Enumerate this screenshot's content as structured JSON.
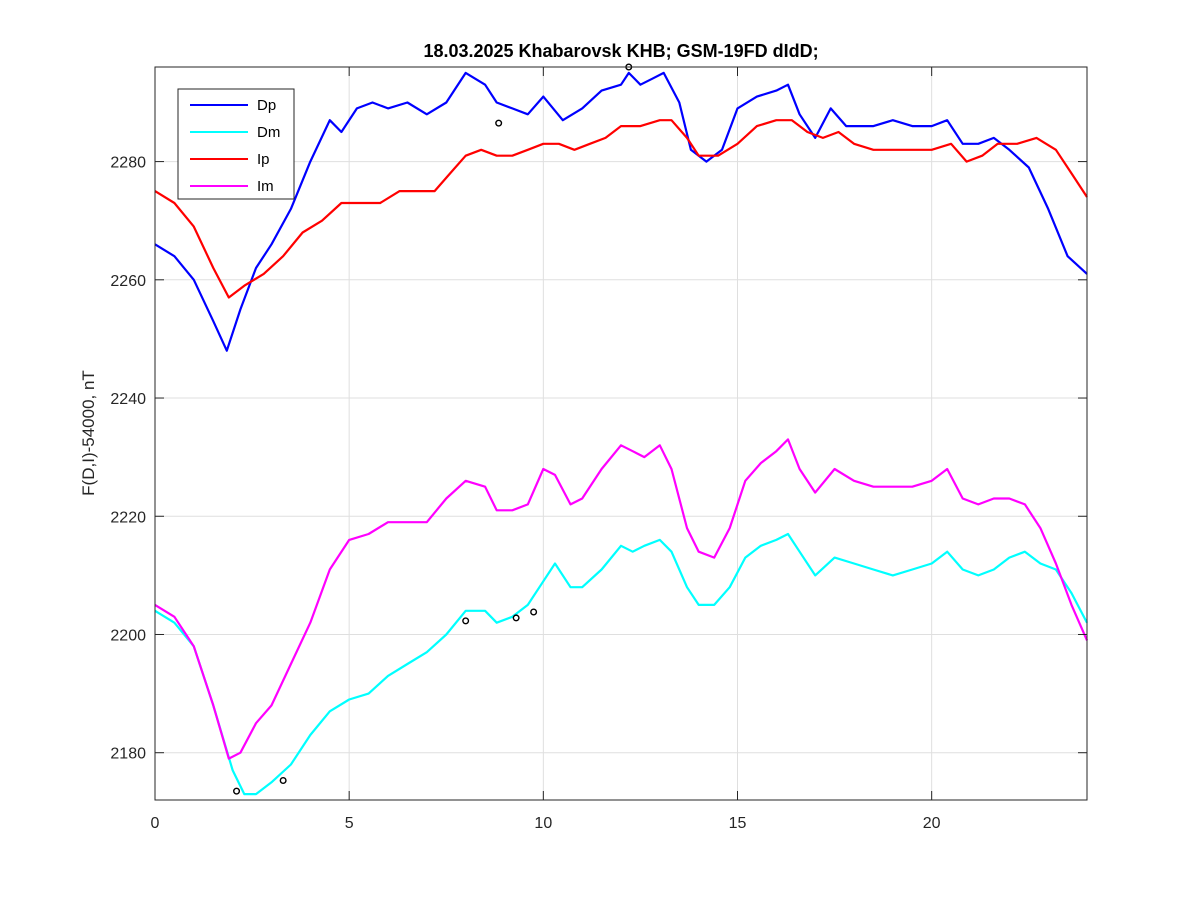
{
  "chart_data": {
    "type": "line",
    "title": "18.03.2025  Khabarovsk KHB; GSM-19FD dIdD;",
    "xlabel": "",
    "ylabel": "F(D,I)-54000, nT",
    "xlim": [
      0,
      24
    ],
    "ylim": [
      2172,
      2296
    ],
    "xticks": [
      0,
      5,
      10,
      15,
      20
    ],
    "yticks": [
      2180,
      2200,
      2220,
      2240,
      2260,
      2280
    ],
    "grid": true,
    "legend_position": "top-left",
    "series": [
      {
        "name": "Dp",
        "color": "#0000ff",
        "x": [
          0,
          0.5,
          1.0,
          1.5,
          1.85,
          2.2,
          2.6,
          3.0,
          3.5,
          4.0,
          4.5,
          4.8,
          5.2,
          5.6,
          6.0,
          6.5,
          7.0,
          7.5,
          8.0,
          8.5,
          8.8,
          9.2,
          9.6,
          10.0,
          10.5,
          11.0,
          11.5,
          12.0,
          12.2,
          12.5,
          12.8,
          13.1,
          13.5,
          13.8,
          14.2,
          14.6,
          15.0,
          15.5,
          16.0,
          16.3,
          16.6,
          17.0,
          17.4,
          17.8,
          18.5,
          19.0,
          19.5,
          20.0,
          20.4,
          20.8,
          21.2,
          21.6,
          22.0,
          22.5,
          23.0,
          23.5,
          24.0
        ],
        "y": [
          2266,
          2264,
          2260,
          2253,
          2248,
          2255,
          2262,
          2266,
          2272,
          2280,
          2287,
          2285,
          2289,
          2290,
          2289,
          2290,
          2288,
          2290,
          2295,
          2293,
          2290,
          2289,
          2288,
          2291,
          2287,
          2289,
          2292,
          2293,
          2295,
          2293,
          2294,
          2295,
          2290,
          2282,
          2280,
          2282,
          2289,
          2291,
          2292,
          2293,
          2288,
          2284,
          2289,
          2286,
          2286,
          2287,
          2286,
          2286,
          2287,
          2283,
          2283,
          2284,
          2282,
          2279,
          2272,
          2264,
          2261
        ]
      },
      {
        "name": "Dm",
        "color": "#00ffff",
        "x": [
          0,
          0.5,
          1.0,
          1.5,
          2.0,
          2.3,
          2.6,
          3.0,
          3.5,
          4.0,
          4.5,
          5.0,
          5.5,
          6.0,
          6.5,
          7.0,
          7.5,
          8.0,
          8.5,
          8.8,
          9.2,
          9.6,
          10.0,
          10.3,
          10.7,
          11.0,
          11.5,
          12.0,
          12.3,
          12.6,
          13.0,
          13.3,
          13.7,
          14.0,
          14.4,
          14.8,
          15.2,
          15.6,
          16.0,
          16.3,
          16.6,
          17.0,
          17.5,
          18.0,
          18.5,
          19.0,
          19.5,
          20.0,
          20.4,
          20.8,
          21.2,
          21.6,
          22.0,
          22.4,
          22.8,
          23.2,
          23.6,
          24.0
        ],
        "y": [
          2204,
          2202,
          2198,
          2188,
          2177,
          2173,
          2173,
          2175,
          2178,
          2183,
          2187,
          2189,
          2190,
          2193,
          2195,
          2197,
          2200,
          2204,
          2204,
          2202,
          2203,
          2205,
          2209,
          2212,
          2208,
          2208,
          2211,
          2215,
          2214,
          2215,
          2216,
          2214,
          2208,
          2205,
          2205,
          2208,
          2213,
          2215,
          2216,
          2217,
          2214,
          2210,
          2213,
          2212,
          2211,
          2210,
          2211,
          2212,
          2214,
          2211,
          2210,
          2211,
          2213,
          2214,
          2212,
          2211,
          2207,
          2202
        ]
      },
      {
        "name": "Ip",
        "color": "#ff0000",
        "x": [
          0,
          0.5,
          1.0,
          1.5,
          1.9,
          2.3,
          2.8,
          3.3,
          3.8,
          4.3,
          4.8,
          5.3,
          5.8,
          6.3,
          6.8,
          7.2,
          7.6,
          8.0,
          8.4,
          8.8,
          9.2,
          9.6,
          10.0,
          10.4,
          10.8,
          11.2,
          11.6,
          12.0,
          12.5,
          13.0,
          13.3,
          13.7,
          14.0,
          14.5,
          15.0,
          15.5,
          16.0,
          16.4,
          16.8,
          17.2,
          17.6,
          18.0,
          18.5,
          19.0,
          19.5,
          20.0,
          20.5,
          20.9,
          21.3,
          21.7,
          22.2,
          22.7,
          23.2,
          23.6,
          24.0
        ],
        "y": [
          2275,
          2273,
          2269,
          2262,
          2257,
          2259,
          2261,
          2264,
          2268,
          2270,
          2273,
          2273,
          2273,
          2275,
          2275,
          2275,
          2278,
          2281,
          2282,
          2281,
          2281,
          2282,
          2283,
          2283,
          2282,
          2283,
          2284,
          2286,
          2286,
          2287,
          2287,
          2284,
          2281,
          2281,
          2283,
          2286,
          2287,
          2287,
          2285,
          2284,
          2285,
          2283,
          2282,
          2282,
          2282,
          2282,
          2283,
          2280,
          2281,
          2283,
          2283,
          2284,
          2282,
          2278,
          2274
        ]
      },
      {
        "name": "Im",
        "color": "#ff00ff",
        "x": [
          0,
          0.5,
          1.0,
          1.5,
          1.9,
          2.2,
          2.6,
          3.0,
          3.5,
          4.0,
          4.5,
          5.0,
          5.5,
          6.0,
          6.5,
          7.0,
          7.5,
          8.0,
          8.5,
          8.8,
          9.2,
          9.6,
          10.0,
          10.3,
          10.7,
          11.0,
          11.5,
          12.0,
          12.3,
          12.6,
          13.0,
          13.3,
          13.7,
          14.0,
          14.4,
          14.8,
          15.2,
          15.6,
          16.0,
          16.3,
          16.6,
          17.0,
          17.5,
          18.0,
          18.5,
          19.0,
          19.5,
          20.0,
          20.4,
          20.8,
          21.2,
          21.6,
          22.0,
          22.4,
          22.8,
          23.2,
          23.6,
          24.0
        ],
        "y": [
          2205,
          2203,
          2198,
          2188,
          2179,
          2180,
          2185,
          2188,
          2195,
          2202,
          2211,
          2216,
          2217,
          2219,
          2219,
          2219,
          2223,
          2226,
          2225,
          2221,
          2221,
          2222,
          2228,
          2227,
          2222,
          2223,
          2228,
          2232,
          2231,
          2230,
          2232,
          2228,
          2218,
          2214,
          2213,
          2218,
          2226,
          2229,
          2231,
          2233,
          2228,
          2224,
          2228,
          2226,
          2225,
          2225,
          2225,
          2226,
          2228,
          2223,
          2222,
          2223,
          2223,
          2222,
          2218,
          2212,
          2205,
          2199
        ]
      }
    ],
    "markers": {
      "color": "#000000",
      "shape": "circle-open",
      "points": [
        {
          "x": 8.85,
          "y": 2286.5
        },
        {
          "x": 12.2,
          "y": 2296
        },
        {
          "x": 2.1,
          "y": 2173.5
        },
        {
          "x": 3.3,
          "y": 2175.3
        },
        {
          "x": 8.0,
          "y": 2202.3
        },
        {
          "x": 9.3,
          "y": 2202.8
        },
        {
          "x": 9.75,
          "y": 2203.8
        }
      ]
    }
  }
}
